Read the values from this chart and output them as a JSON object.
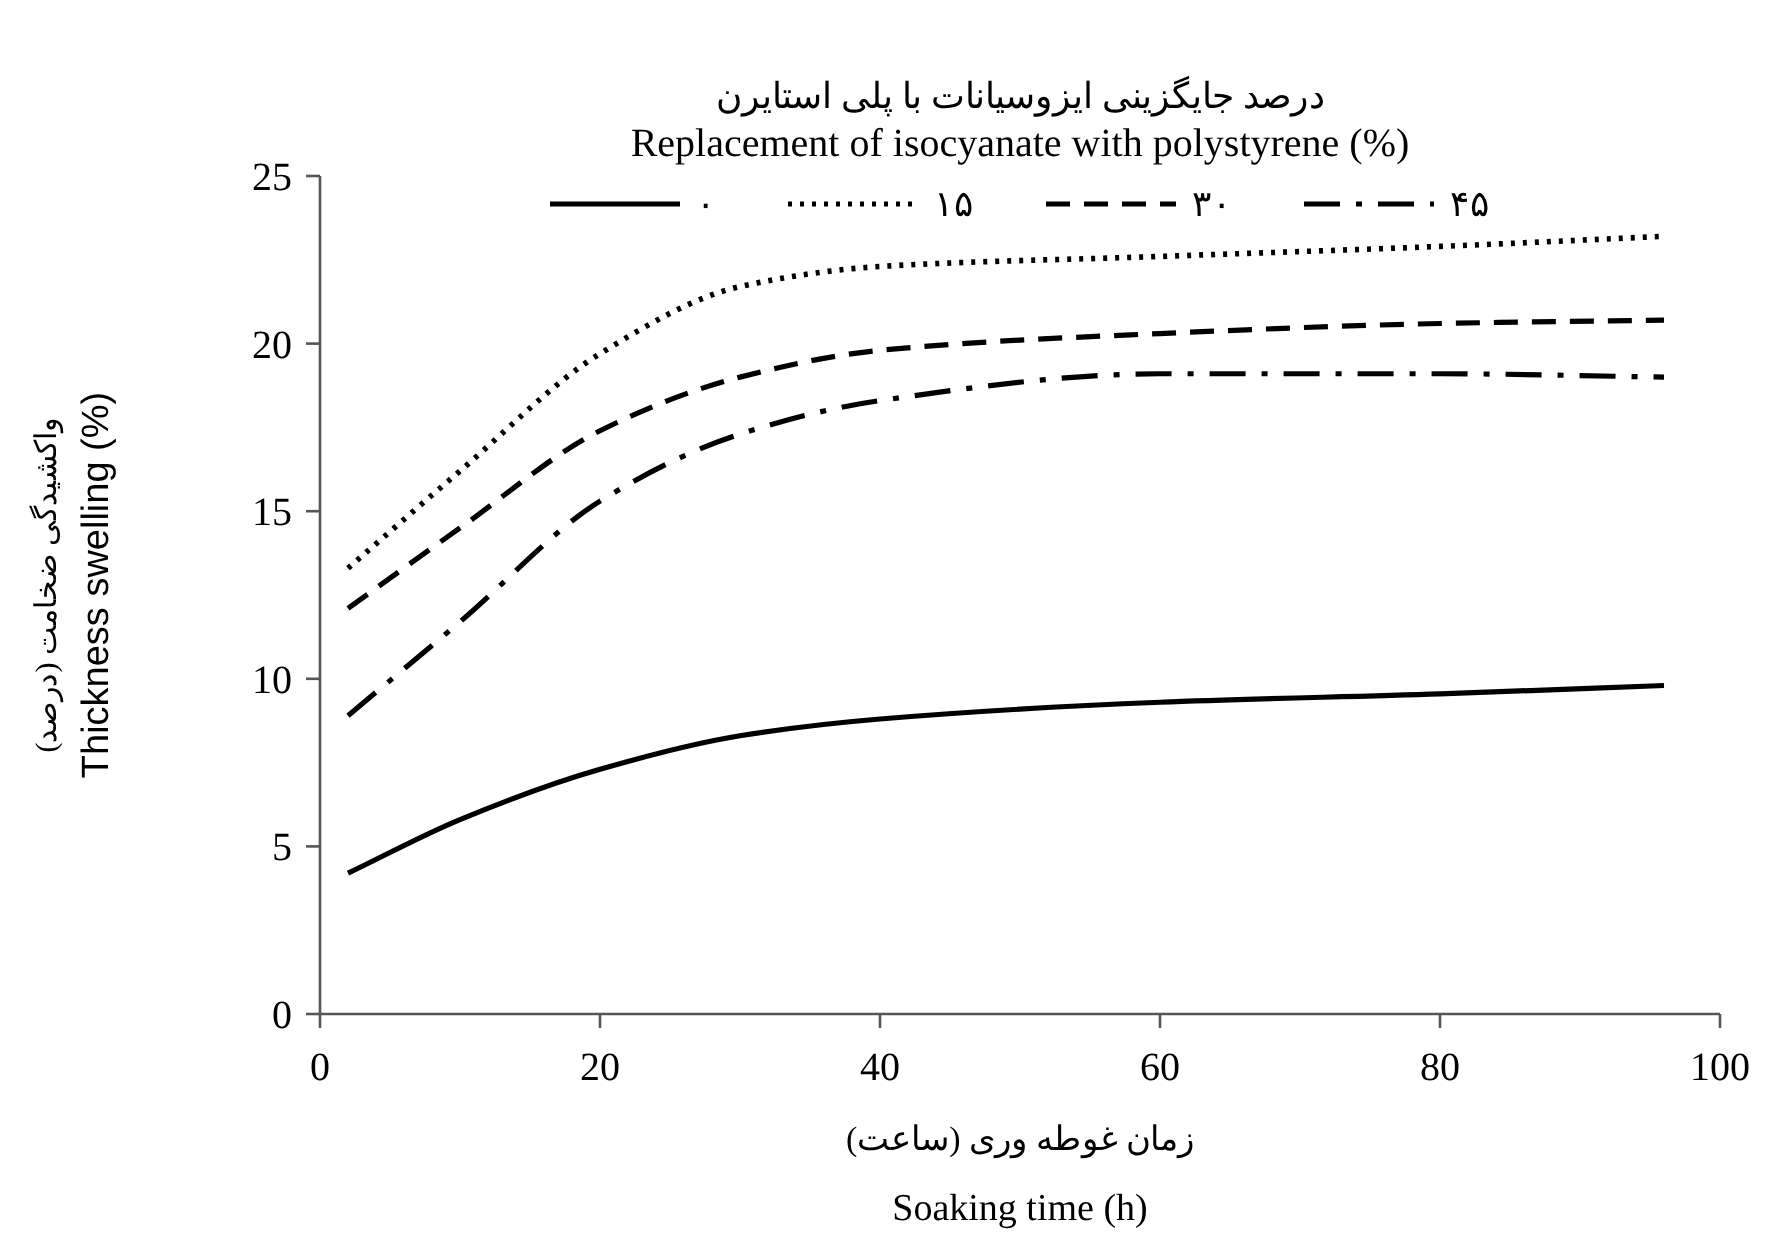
{
  "chart_data": {
    "type": "line",
    "title": "درصد جایگزینی ایزوسیانات با پلی استایرن",
    "legend_title": "Replacement of isocyanate with polystyrene (%)",
    "xlabel": "زمان غوطه وری (ساعت)\nSoaking time (h)",
    "ylabel": "واکشیدگی ضخامت (درصد)\nThickness swelling (%)",
    "x": [
      2,
      10,
      20,
      30,
      40,
      60,
      80,
      96
    ],
    "series": [
      {
        "name": "۰",
        "color": "#000000",
        "line_style": "solid",
        "values": [
          4.2,
          5.8,
          7.3,
          8.3,
          8.8,
          9.3,
          9.55,
          9.8
        ]
      },
      {
        "name": "۱۵",
        "color": "#000000",
        "line_style": "dotted",
        "values": [
          13.3,
          16.2,
          19.7,
          21.7,
          22.3,
          22.6,
          22.9,
          23.2
        ]
      },
      {
        "name": "۳۰",
        "color": "#000000",
        "line_style": "dashed",
        "values": [
          12.1,
          14.5,
          17.4,
          19.0,
          19.8,
          20.3,
          20.6,
          20.7
        ]
      },
      {
        "name": "۴۵",
        "color": "#000000",
        "line_style": "dashdot",
        "values": [
          8.9,
          11.7,
          15.3,
          17.3,
          18.3,
          19.1,
          19.1,
          19.0
        ]
      }
    ],
    "xlim": [
      0,
      100
    ],
    "xticks": [
      0,
      20,
      40,
      60,
      80,
      100
    ],
    "ylim": [
      0,
      25
    ],
    "yticks": [
      0,
      5,
      10,
      15,
      20,
      25
    ],
    "legend": "top",
    "marker": "none"
  }
}
